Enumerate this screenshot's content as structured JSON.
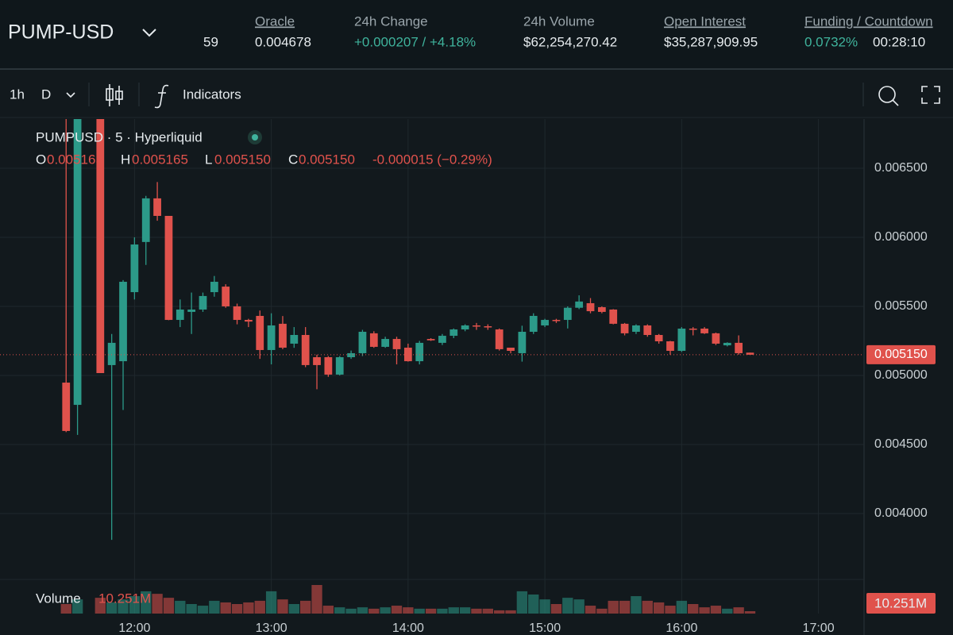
{
  "header": {
    "symbol": "PUMP-USD",
    "leverage": "59",
    "stats": [
      {
        "label": "Oracle",
        "value": "0.004678"
      },
      {
        "label": "24h Change",
        "value": "+0.000207 / +4.18%"
      },
      {
        "label": "24h Volume",
        "value": "$62,254,270.42"
      },
      {
        "label": "Open Interest",
        "value": "$35,287,909.95"
      },
      {
        "label": "Funding / Countdown",
        "value": "0.0732%",
        "countdown": "00:28:10"
      }
    ]
  },
  "toolbar": {
    "interval": "1h",
    "range": "D",
    "indicators": "Indicators"
  },
  "chart_data": {
    "type": "candlestick",
    "title": "PUMPUSD · 5 · Hyperliquid",
    "ohlc_legend": {
      "o_label": "O",
      "o": "0.005165",
      "h_label": "H",
      "h": "0.005165",
      "l_label": "L",
      "l": "0.005150",
      "c_label": "C",
      "c": "0.005150",
      "change": "-0.000015 (−0.29%)"
    },
    "last_price_label": "0.005150",
    "volume_title": "Volume",
    "volume_label": "10.251M",
    "up_color": "#2c9a89",
    "down_color": "#e0524c",
    "grid": true,
    "x": [
      "11:30",
      "11:35",
      "11:45",
      "11:50",
      "11:55",
      "12:00",
      "12:05",
      "12:10",
      "12:15",
      "12:20",
      "12:25",
      "12:30",
      "12:35",
      "12:40",
      "12:45",
      "12:50",
      "12:55",
      "13:00",
      "13:05",
      "13:10",
      "13:15",
      "13:20",
      "13:25",
      "13:30",
      "13:35",
      "13:40",
      "13:45",
      "13:50",
      "13:55",
      "14:00",
      "14:05",
      "14:10",
      "14:15",
      "14:20",
      "14:25",
      "14:30",
      "14:35",
      "14:40",
      "14:45",
      "14:50",
      "14:55",
      "15:00",
      "15:05",
      "15:10",
      "15:15",
      "15:20",
      "15:25",
      "15:30",
      "15:35",
      "15:40",
      "15:45",
      "15:50",
      "15:55",
      "16:00",
      "16:05",
      "16:10",
      "16:15",
      "16:20",
      "16:25",
      "16:30"
    ],
    "open": [
      0.004948,
      0.004787,
      0.007,
      0.005075,
      0.005103,
      0.005603,
      0.005966,
      0.006282,
      0.006155,
      0.005402,
      0.00546,
      0.005477,
      0.005603,
      0.005643,
      0.0055,
      0.005402,
      0.005431,
      0.005184,
      0.005374,
      0.00523,
      0.005293,
      0.005132,
      0.005132,
      0.005006,
      0.005132,
      0.005161,
      0.005305,
      0.005207,
      0.005264,
      0.005201,
      0.005103,
      0.005264,
      0.005236,
      0.005287,
      0.005333,
      0.005362,
      0.005356,
      0.005333,
      0.005201,
      0.005161,
      0.005316,
      0.005362,
      0.005402,
      0.005402,
      0.00549,
      0.005523,
      0.005494,
      0.005477,
      0.005374,
      0.005316,
      0.005362,
      0.005293,
      0.005247,
      0.005178,
      0.005339,
      0.005339,
      0.005305,
      0.005218,
      0.005236,
      0.005165
    ],
    "high": [
      0.0069,
      0.007,
      0.0071,
      0.0053,
      0.00569,
      0.006,
      0.0063,
      0.0064,
      0.006155,
      0.00555,
      0.0056,
      0.0056,
      0.00572,
      0.00566,
      0.00552,
      0.00541,
      0.00547,
      0.00545,
      0.00543,
      0.00535,
      0.00535,
      0.00515,
      0.00514,
      0.00514,
      0.00518,
      0.00533,
      0.00532,
      0.00528,
      0.00528,
      0.00523,
      0.00525,
      0.00527,
      0.0053,
      0.00534,
      0.00537,
      0.00538,
      0.00537,
      0.00534,
      0.0052,
      0.00536,
      0.00545,
      0.00541,
      0.00541,
      0.0055,
      0.00558,
      0.00556,
      0.0055,
      0.00548,
      0.00538,
      0.00537,
      0.00537,
      0.0053,
      0.00525,
      0.00535,
      0.00535,
      0.00535,
      0.00531,
      0.00524,
      0.00529,
      0.005165
    ],
    "low": [
      0.00459,
      0.00457,
      0.005017,
      0.00381,
      0.00475,
      0.00555,
      0.0058,
      0.00612,
      0.0054,
      0.00535,
      0.0053,
      0.00546,
      0.00557,
      0.00549,
      0.00537,
      0.00535,
      0.00512,
      0.00508,
      0.00519,
      0.0052,
      0.00506,
      0.0049,
      0.00499,
      0.005,
      0.00512,
      0.00514,
      0.0052,
      0.0052,
      0.00508,
      0.0051,
      0.00508,
      0.00525,
      0.00522,
      0.00527,
      0.00532,
      0.00533,
      0.00533,
      0.00518,
      0.00516,
      0.0051,
      0.0053,
      0.00535,
      0.00538,
      0.00534,
      0.00548,
      0.00545,
      0.00545,
      0.00537,
      0.00529,
      0.0053,
      0.00528,
      0.00523,
      0.00515,
      0.00517,
      0.00529,
      0.0053,
      0.00522,
      0.00521,
      0.00515,
      0.00515
    ],
    "close": [
      0.004598,
      0.0069,
      0.005017,
      0.005236,
      0.005678,
      0.005948,
      0.006282,
      0.006155,
      0.005402,
      0.005477,
      0.005477,
      0.005575,
      0.005678,
      0.0055,
      0.005402,
      0.00539,
      0.005184,
      0.005362,
      0.005201,
      0.005293,
      0.005075,
      0.005075,
      0.005006,
      0.005132,
      0.005161,
      0.005316,
      0.005207,
      0.005264,
      0.00519,
      0.005103,
      0.005236,
      0.005254,
      0.005287,
      0.005333,
      0.005362,
      0.005356,
      0.005351,
      0.00519,
      0.005178,
      0.005316,
      0.005431,
      0.005402,
      0.005397,
      0.00549,
      0.005535,
      0.005465,
      0.00546,
      0.005374,
      0.005305,
      0.005362,
      0.005293,
      0.005247,
      0.005178,
      0.005339,
      0.005333,
      0.005305,
      0.00523,
      0.005236,
      0.005161,
      0.00515
    ],
    "volume": [
      41,
      61,
      68,
      48,
      61,
      75,
      96,
      85,
      68,
      55,
      41,
      34,
      55,
      48,
      41,
      48,
      55,
      96,
      61,
      41,
      55,
      123,
      34,
      27,
      21,
      27,
      21,
      27,
      34,
      27,
      21,
      21,
      21,
      27,
      27,
      21,
      21,
      14,
      14,
      96,
      82,
      61,
      41,
      68,
      61,
      34,
      21,
      55,
      55,
      75,
      55,
      48,
      34,
      55,
      41,
      27,
      34,
      21,
      27,
      10.251
    ],
    "xlim": [
      "11:01",
      "17:20"
    ],
    "xticks": [
      "12:00",
      "13:00",
      "14:00",
      "15:00",
      "16:00",
      "17:00"
    ],
    "ylim": [
      0.003276,
      0.006856
    ],
    "yticks": [
      {
        "value": 0.004,
        "label": "0.004000"
      },
      {
        "value": 0.0045,
        "label": "0.004500"
      },
      {
        "value": 0.005,
        "label": "0.005000"
      },
      {
        "value": 0.0055,
        "label": "0.005500"
      },
      {
        "value": 0.006,
        "label": "0.006000"
      },
      {
        "value": 0.0065,
        "label": "0.006500"
      }
    ]
  }
}
